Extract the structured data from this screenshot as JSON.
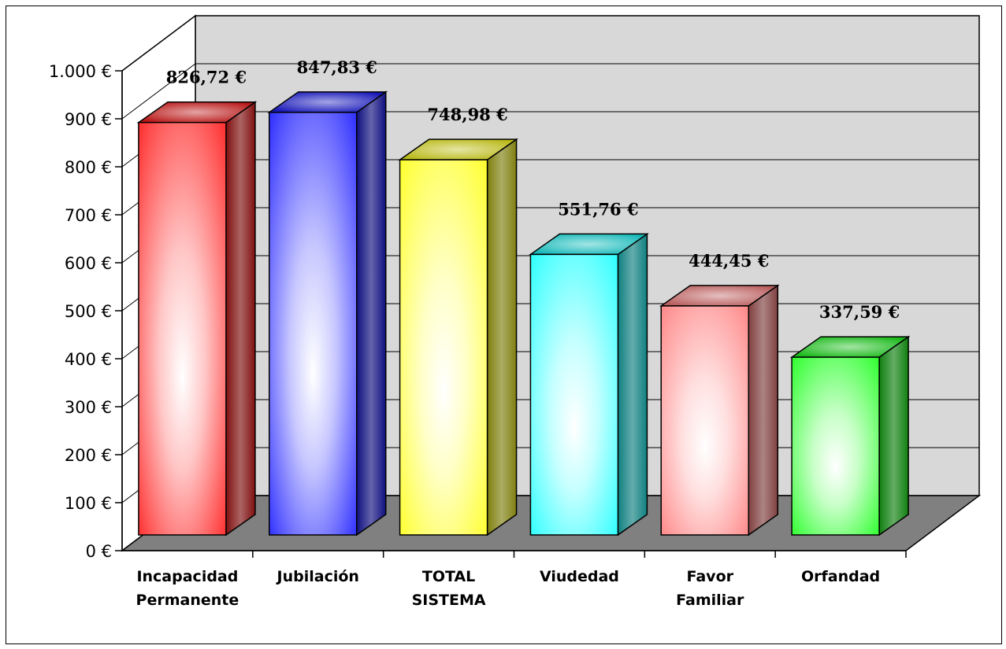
{
  "chart_data": {
    "type": "bar",
    "title": "",
    "xlabel": "",
    "ylabel": "",
    "ylim": [
      0,
      1000
    ],
    "y_ticks": [
      0,
      100,
      200,
      300,
      400,
      500,
      600,
      700,
      800,
      900,
      1000
    ],
    "y_tick_labels": [
      "0 €",
      "100 €",
      "200 €",
      "300 €",
      "400 €",
      "500 €",
      "600 €",
      "700 €",
      "800 €",
      "900 €",
      "1.000 €"
    ],
    "grid": true,
    "legend": "none",
    "categories": [
      [
        "Incapacidad",
        "Permanente"
      ],
      [
        "Jubilación"
      ],
      [
        "TOTAL",
        "SISTEMA"
      ],
      [
        "Viudedad"
      ],
      [
        "Favor",
        "Familiar"
      ],
      [
        "Orfandad"
      ]
    ],
    "values": [
      826.72,
      847.83,
      748.98,
      551.76,
      444.45,
      337.59
    ],
    "value_labels": [
      "826,72 €",
      "847,83 €",
      "748,98 €",
      "551,76 €",
      "444,45 €",
      "337,59 €"
    ],
    "colors": [
      "#ff2020",
      "#2020ff",
      "#ffff20",
      "#20ffff",
      "#ff8080",
      "#20ff20"
    ],
    "back_wall_color": "#d8d8d8",
    "floor_color": "#808080"
  }
}
